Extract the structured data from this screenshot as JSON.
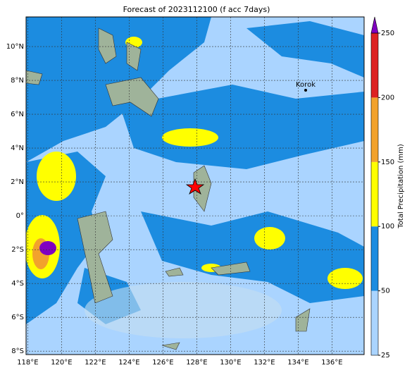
{
  "title": "Forecast of 2023112100 (f acc 7days)",
  "map": {
    "lon_range": [
      117.9,
      137.9
    ],
    "lat_range": [
      -8.2,
      11.75
    ],
    "xticks": [
      {
        "value": 118,
        "label": "118°E"
      },
      {
        "value": 120,
        "label": "120°E"
      },
      {
        "value": 122,
        "label": "122°E"
      },
      {
        "value": 124,
        "label": "124°E"
      },
      {
        "value": 126,
        "label": "126°E"
      },
      {
        "value": 128,
        "label": "128°E"
      },
      {
        "value": 130,
        "label": "130°E"
      },
      {
        "value": 132,
        "label": "132°E"
      },
      {
        "value": 134,
        "label": "134°E"
      },
      {
        "value": 136,
        "label": "136°E"
      }
    ],
    "yticks": [
      {
        "value": 10,
        "label": "10°N"
      },
      {
        "value": 8,
        "label": "8°N"
      },
      {
        "value": 6,
        "label": "6°N"
      },
      {
        "value": 4,
        "label": "4°N"
      },
      {
        "value": 2,
        "label": "2°N"
      },
      {
        "value": 0,
        "label": "0°"
      },
      {
        "value": -2,
        "label": "2°S"
      },
      {
        "value": -4,
        "label": "4°S"
      },
      {
        "value": -6,
        "label": "6°S"
      },
      {
        "value": -8,
        "label": "8°S"
      }
    ],
    "place": "Korok"
  },
  "colorbar": {
    "label": "Total Precipitation (mm)",
    "ticks": [
      25,
      50,
      100,
      150,
      200,
      250
    ],
    "colors": [
      "#aad4ff",
      "#1c8ce0",
      "#ffff00",
      "#f2a22c",
      "#dd2222"
    ],
    "extend_color": "#8000c0"
  }
}
